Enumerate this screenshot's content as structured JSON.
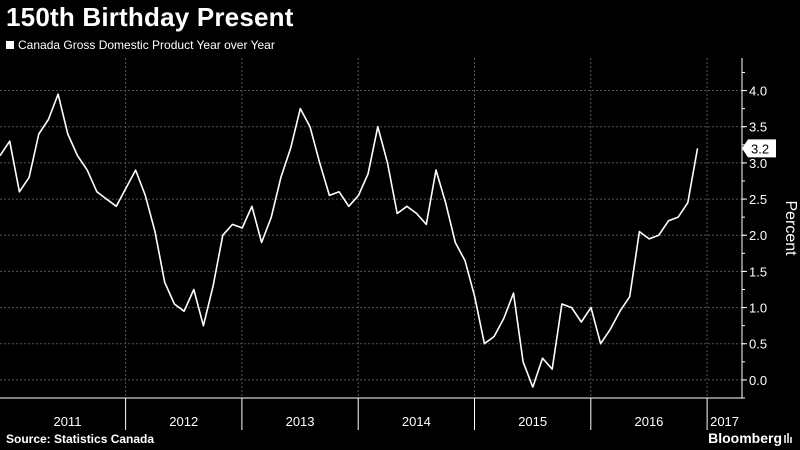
{
  "chart_data": {
    "type": "line",
    "title": "150th Birthday Present",
    "series": [
      {
        "name": "Canada Gross Domestic Product Year over Year",
        "values": [
          3.1,
          3.3,
          2.6,
          2.8,
          3.4,
          3.6,
          3.95,
          3.4,
          3.1,
          2.9,
          2.6,
          2.5,
          2.4,
          2.65,
          2.9,
          2.55,
          2.05,
          1.35,
          1.05,
          0.95,
          1.25,
          0.75,
          1.3,
          2.0,
          2.15,
          2.1,
          2.4,
          1.9,
          2.25,
          2.8,
          3.2,
          3.75,
          3.5,
          3.0,
          2.55,
          2.6,
          2.4,
          2.55,
          2.85,
          3.5,
          3.0,
          2.3,
          2.4,
          2.3,
          2.15,
          2.9,
          2.45,
          1.9,
          1.65,
          1.15,
          0.5,
          0.6,
          0.85,
          1.2,
          0.25,
          -0.1,
          0.3,
          0.15,
          1.05,
          1.0,
          0.8,
          1.0,
          0.5,
          0.7,
          0.95,
          1.15,
          2.05,
          1.95,
          2.0,
          2.2,
          2.25,
          2.45,
          3.2
        ]
      }
    ],
    "x_range": [
      2010.92,
      2017.3
    ],
    "x_start": 2010.92,
    "x_step": 0.0833,
    "ylabel": "Percent",
    "ylim": [
      -0.25,
      4.45
    ],
    "yticks": [
      "4.0",
      "3.5",
      "3.0",
      "2.5",
      "2.0",
      "1.5",
      "1.0",
      "0.5",
      "0.0"
    ],
    "ytick_values": [
      4.0,
      3.5,
      3.0,
      2.5,
      2.0,
      1.5,
      1.0,
      0.5,
      0.0
    ],
    "xticks": [
      "2011",
      "2012",
      "2013",
      "2014",
      "2015",
      "2016",
      "2017"
    ],
    "xtick_centers": [
      2011.5,
      2012.5,
      2013.5,
      2014.5,
      2015.5,
      2016.5,
      2017.15
    ],
    "xtick_dividers": [
      2012,
      2013,
      2014,
      2015,
      2016,
      2017
    ],
    "last_value_label": "3.2",
    "last_value": 3.2,
    "grid": true
  },
  "legend_label": "Canada Gross Domestic Product Year over Year",
  "source": "Source: Statistics Canada",
  "brand": "Bloomberg",
  "colors": {
    "background": "#000000",
    "line": "#ffffff",
    "grid": "#555555"
  }
}
